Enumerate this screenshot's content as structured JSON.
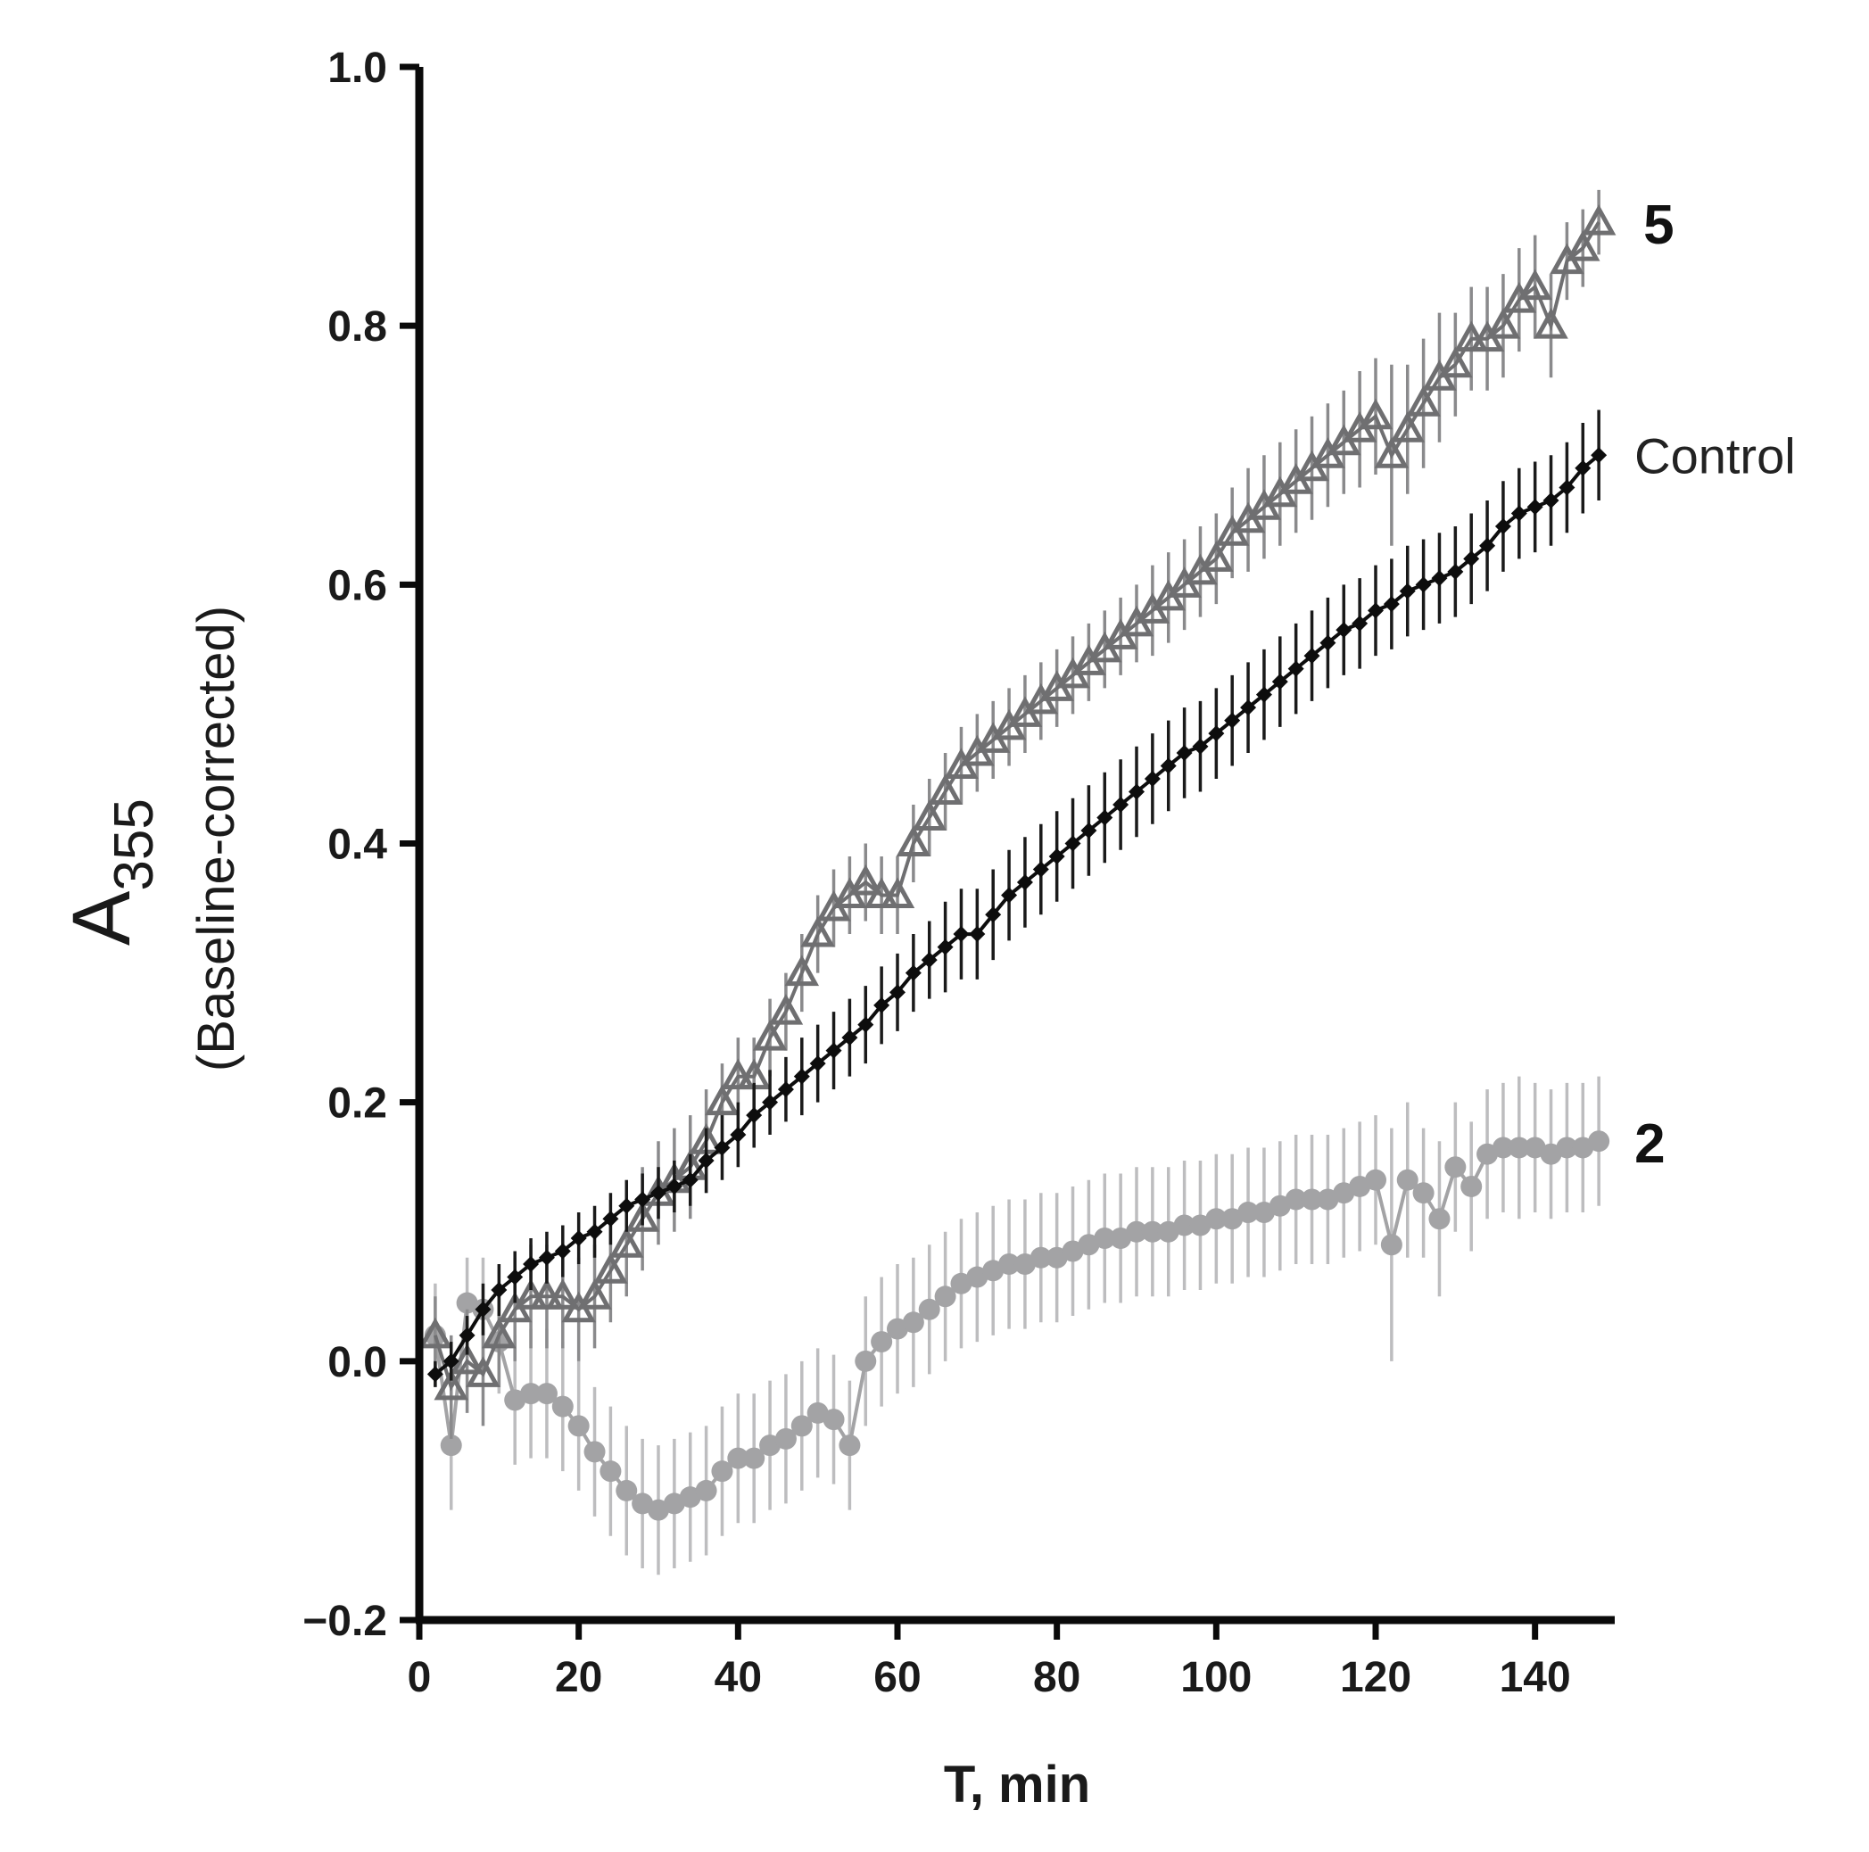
{
  "chart_data": {
    "type": "line",
    "title": "",
    "xlabel": "T, min",
    "ylabel_main": "A",
    "ylabel_sub": "355",
    "ylabel_note": "(Baseline-corrected)",
    "xlim": [
      0,
      150
    ],
    "ylim": [
      -0.2,
      1.0
    ],
    "xticks": [
      0,
      20,
      40,
      60,
      80,
      100,
      120,
      140
    ],
    "xtick_labels": [
      "0",
      "20",
      "40",
      "60",
      "80",
      "100",
      "120",
      "140"
    ],
    "yticks": [
      -0.2,
      0.0,
      0.2,
      0.4,
      0.6,
      0.8,
      1.0
    ],
    "ytick_labels": [
      "−0.2",
      "0.0",
      "0.2",
      "0.4",
      "0.6",
      "0.8",
      "1.0"
    ],
    "grid": false,
    "series": [
      {
        "name": "2",
        "label": "2",
        "marker": "circle",
        "color": "#a3a3a5",
        "err_color": "#bdbdbf",
        "x": [
          2,
          4,
          6,
          8,
          10,
          12,
          14,
          16,
          18,
          20,
          22,
          24,
          26,
          28,
          30,
          32,
          34,
          36,
          38,
          40,
          42,
          44,
          46,
          48,
          50,
          52,
          54,
          56,
          58,
          60,
          62,
          64,
          66,
          68,
          70,
          72,
          74,
          76,
          78,
          80,
          82,
          84,
          86,
          88,
          90,
          92,
          94,
          96,
          98,
          100,
          102,
          104,
          106,
          108,
          110,
          112,
          114,
          116,
          118,
          120,
          122,
          124,
          126,
          128,
          130,
          132,
          134,
          136,
          138,
          140,
          142,
          144,
          146,
          148
        ],
        "y": [
          0.02,
          -0.065,
          0.045,
          0.04,
          0.015,
          -0.03,
          -0.025,
          -0.025,
          -0.035,
          -0.05,
          -0.07,
          -0.085,
          -0.1,
          -0.11,
          -0.115,
          -0.11,
          -0.105,
          -0.1,
          -0.085,
          -0.075,
          -0.075,
          -0.065,
          -0.06,
          -0.05,
          -0.04,
          -0.045,
          -0.065,
          0.0,
          0.015,
          0.025,
          0.03,
          0.04,
          0.05,
          0.06,
          0.065,
          0.07,
          0.075,
          0.075,
          0.08,
          0.08,
          0.085,
          0.09,
          0.095,
          0.095,
          0.1,
          0.1,
          0.1,
          0.105,
          0.105,
          0.11,
          0.11,
          0.115,
          0.115,
          0.12,
          0.125,
          0.125,
          0.125,
          0.13,
          0.135,
          0.14,
          0.09,
          0.14,
          0.13,
          0.11,
          0.15,
          0.135,
          0.16,
          0.165,
          0.165,
          0.165,
          0.16,
          0.165,
          0.165,
          0.17
        ],
        "err": [
          0.04,
          0.05,
          0.035,
          0.04,
          0.04,
          0.05,
          0.05,
          0.05,
          0.05,
          0.05,
          0.05,
          0.05,
          0.05,
          0.05,
          0.05,
          0.05,
          0.05,
          0.05,
          0.05,
          0.05,
          0.05,
          0.05,
          0.05,
          0.05,
          0.05,
          0.05,
          0.05,
          0.05,
          0.05,
          0.05,
          0.05,
          0.05,
          0.05,
          0.05,
          0.05,
          0.05,
          0.05,
          0.05,
          0.05,
          0.05,
          0.05,
          0.05,
          0.05,
          0.05,
          0.05,
          0.05,
          0.05,
          0.05,
          0.05,
          0.05,
          0.05,
          0.05,
          0.05,
          0.05,
          0.05,
          0.05,
          0.05,
          0.05,
          0.05,
          0.05,
          0.09,
          0.06,
          0.05,
          0.06,
          0.05,
          0.05,
          0.05,
          0.05,
          0.055,
          0.05,
          0.05,
          0.05,
          0.05,
          0.05
        ]
      },
      {
        "name": "5",
        "label": "5",
        "marker": "triangle",
        "color": "#6f6f71",
        "err_color": "#8a8a8c",
        "x": [
          2,
          4,
          6,
          8,
          10,
          12,
          14,
          16,
          18,
          20,
          22,
          24,
          26,
          28,
          30,
          32,
          34,
          36,
          38,
          40,
          42,
          44,
          46,
          48,
          50,
          52,
          54,
          56,
          58,
          60,
          62,
          64,
          66,
          68,
          70,
          72,
          74,
          76,
          78,
          80,
          82,
          84,
          86,
          88,
          90,
          92,
          94,
          96,
          98,
          100,
          102,
          104,
          106,
          108,
          110,
          112,
          114,
          116,
          118,
          120,
          122,
          124,
          126,
          128,
          130,
          132,
          134,
          136,
          138,
          140,
          142,
          144,
          146,
          148
        ],
        "y": [
          0.02,
          -0.02,
          0.0,
          -0.01,
          0.02,
          0.04,
          0.05,
          0.05,
          0.05,
          0.04,
          0.05,
          0.07,
          0.09,
          0.11,
          0.13,
          0.14,
          0.15,
          0.17,
          0.2,
          0.22,
          0.22,
          0.25,
          0.27,
          0.3,
          0.33,
          0.35,
          0.36,
          0.37,
          0.36,
          0.36,
          0.4,
          0.42,
          0.44,
          0.46,
          0.47,
          0.48,
          0.49,
          0.5,
          0.51,
          0.52,
          0.53,
          0.54,
          0.55,
          0.56,
          0.57,
          0.58,
          0.59,
          0.6,
          0.61,
          0.62,
          0.64,
          0.65,
          0.66,
          0.67,
          0.68,
          0.69,
          0.7,
          0.71,
          0.72,
          0.73,
          0.7,
          0.72,
          0.74,
          0.76,
          0.77,
          0.79,
          0.79,
          0.8,
          0.82,
          0.83,
          0.8,
          0.85,
          0.86,
          0.88
        ],
        "err": [
          0.03,
          0.04,
          0.04,
          0.04,
          0.04,
          0.04,
          0.04,
          0.04,
          0.04,
          0.04,
          0.04,
          0.04,
          0.04,
          0.04,
          0.04,
          0.04,
          0.04,
          0.04,
          0.03,
          0.03,
          0.03,
          0.03,
          0.03,
          0.03,
          0.03,
          0.03,
          0.03,
          0.03,
          0.03,
          0.03,
          0.03,
          0.03,
          0.03,
          0.03,
          0.03,
          0.03,
          0.03,
          0.03,
          0.03,
          0.03,
          0.03,
          0.03,
          0.03,
          0.03,
          0.03,
          0.035,
          0.035,
          0.035,
          0.035,
          0.035,
          0.035,
          0.04,
          0.04,
          0.04,
          0.04,
          0.04,
          0.04,
          0.04,
          0.045,
          0.045,
          0.07,
          0.05,
          0.05,
          0.05,
          0.04,
          0.04,
          0.04,
          0.04,
          0.04,
          0.04,
          0.04,
          0.03,
          0.03,
          0.025
        ]
      },
      {
        "name": "Control",
        "label": "Control",
        "marker": "diamond",
        "color": "#0d0d0d",
        "err_color": "#1a1a1a",
        "x": [
          2,
          4,
          6,
          8,
          10,
          12,
          14,
          16,
          18,
          20,
          22,
          24,
          26,
          28,
          30,
          32,
          34,
          36,
          38,
          40,
          42,
          44,
          46,
          48,
          50,
          52,
          54,
          56,
          58,
          60,
          62,
          64,
          66,
          68,
          70,
          72,
          74,
          76,
          78,
          80,
          82,
          84,
          86,
          88,
          90,
          92,
          94,
          96,
          98,
          100,
          102,
          104,
          106,
          108,
          110,
          112,
          114,
          116,
          118,
          120,
          122,
          124,
          126,
          128,
          130,
          132,
          134,
          136,
          138,
          140,
          142,
          144,
          146,
          148
        ],
        "y": [
          -0.01,
          0.0,
          0.02,
          0.04,
          0.055,
          0.065,
          0.075,
          0.08,
          0.085,
          0.095,
          0.1,
          0.11,
          0.12,
          0.125,
          0.13,
          0.135,
          0.14,
          0.155,
          0.165,
          0.175,
          0.19,
          0.2,
          0.21,
          0.22,
          0.23,
          0.24,
          0.25,
          0.26,
          0.275,
          0.285,
          0.3,
          0.31,
          0.32,
          0.33,
          0.33,
          0.345,
          0.36,
          0.37,
          0.38,
          0.39,
          0.4,
          0.41,
          0.42,
          0.43,
          0.44,
          0.45,
          0.46,
          0.47,
          0.475,
          0.485,
          0.495,
          0.505,
          0.515,
          0.525,
          0.535,
          0.545,
          0.555,
          0.565,
          0.57,
          0.58,
          0.585,
          0.595,
          0.6,
          0.605,
          0.61,
          0.62,
          0.63,
          0.645,
          0.655,
          0.66,
          0.665,
          0.675,
          0.69,
          0.7
        ],
        "err": [
          0.01,
          0.015,
          0.015,
          0.02,
          0.02,
          0.02,
          0.02,
          0.02,
          0.02,
          0.02,
          0.02,
          0.02,
          0.02,
          0.02,
          0.02,
          0.02,
          0.02,
          0.025,
          0.025,
          0.025,
          0.025,
          0.025,
          0.025,
          0.03,
          0.03,
          0.03,
          0.03,
          0.03,
          0.03,
          0.03,
          0.03,
          0.03,
          0.035,
          0.035,
          0.035,
          0.035,
          0.035,
          0.035,
          0.035,
          0.035,
          0.035,
          0.035,
          0.035,
          0.035,
          0.035,
          0.035,
          0.035,
          0.035,
          0.035,
          0.035,
          0.035,
          0.035,
          0.035,
          0.035,
          0.035,
          0.035,
          0.035,
          0.035,
          0.035,
          0.035,
          0.035,
          0.035,
          0.035,
          0.035,
          0.035,
          0.035,
          0.035,
          0.035,
          0.035,
          0.035,
          0.035,
          0.035,
          0.035,
          0.035
        ]
      }
    ]
  }
}
